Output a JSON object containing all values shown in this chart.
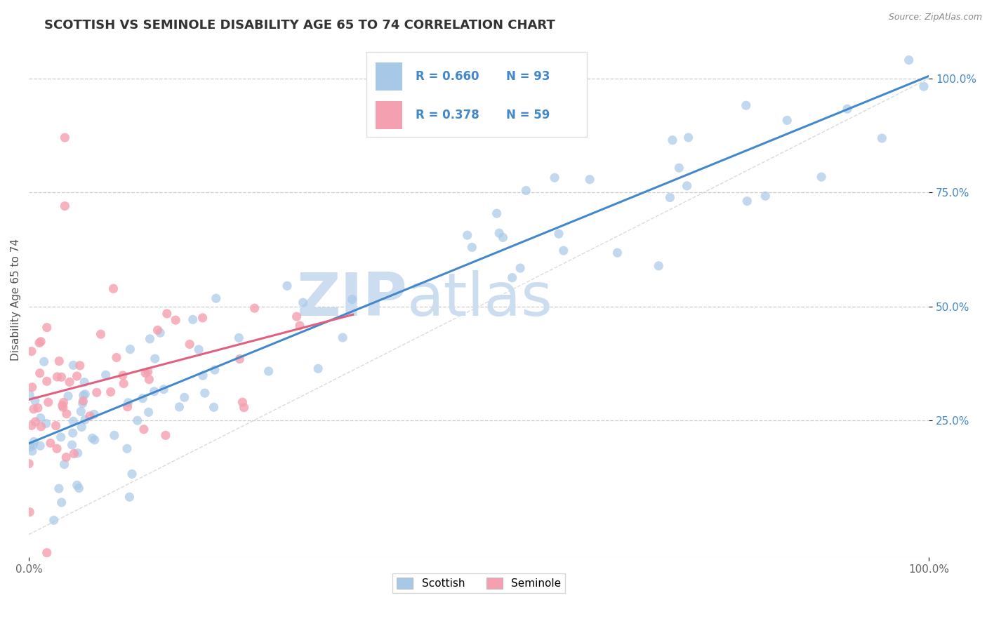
{
  "title": "SCOTTISH VS SEMINOLE DISABILITY AGE 65 TO 74 CORRELATION CHART",
  "source_text": "Source: ZipAtlas.com",
  "ylabel": "Disability Age 65 to 74",
  "xlim": [
    0.0,
    1.0
  ],
  "ylim": [
    -0.05,
    1.08
  ],
  "xticks": [
    0.0,
    1.0
  ],
  "xticklabels": [
    "0.0%",
    "100.0%"
  ],
  "ytick_positions": [
    0.25,
    0.5,
    0.75,
    1.0
  ],
  "yticklabels": [
    "25.0%",
    "50.0%",
    "75.0%",
    "100.0%"
  ],
  "R_scottish": 0.66,
  "N_scottish": 93,
  "R_seminole": 0.378,
  "N_seminole": 59,
  "scottish_color": "#a8c8e8",
  "seminole_color": "#f4a0b0",
  "trend_scottish_color": "#4488cc",
  "trend_seminole_color": "#e06080",
  "diagonal_color": "#cccccc",
  "watermark_zip": "ZIP",
  "watermark_atlas": "atlas",
  "watermark_color": "#ccddf0",
  "legend_label_scottish": "Scottish",
  "legend_label_seminole": "Seminole",
  "background_color": "#ffffff",
  "grid_color": "#cccccc",
  "title_fontsize": 13,
  "axis_label_fontsize": 11,
  "tick_fontsize": 11,
  "ytick_color": "#4488cc",
  "xtick_color": "#4488cc"
}
